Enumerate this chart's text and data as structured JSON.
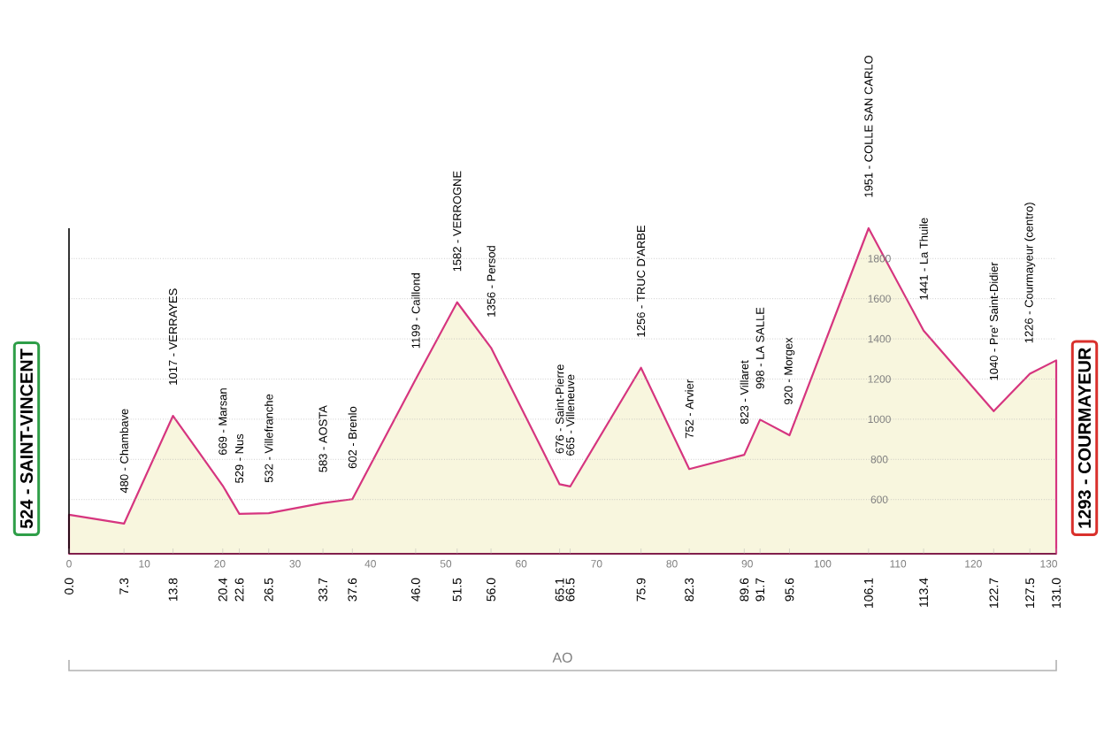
{
  "chart_data": {
    "type": "area",
    "xlim": [
      0,
      131
    ],
    "ylim": [
      330,
      1951
    ],
    "xticks": [
      0,
      10,
      20,
      30,
      40,
      50,
      60,
      70,
      80,
      90,
      100,
      110,
      120,
      130
    ],
    "x2lim": [
      0,
      131
    ],
    "x2ticks": [
      {
        "value": 0,
        "label": "0.0"
      },
      7.3,
      13.8,
      20.4,
      22.6,
      26.5,
      33.7,
      37.6,
      {
        "value": 46,
        "label": "46.0"
      },
      51.5,
      {
        "value": 56,
        "label": "56.0"
      },
      65.1,
      66.5,
      75.9,
      82.3,
      89.6,
      91.7,
      95.6,
      106.1,
      113.4,
      122.7,
      127.5,
      {
        "value": 131,
        "label": "131.0"
      }
    ],
    "yticks": [
      600,
      800,
      1000,
      1200,
      1400,
      1600,
      1800
    ],
    "grid": "y",
    "series": [
      {
        "color": "#d6357f",
        "x": [
          0,
          7.3,
          13.8,
          20.4,
          22.6,
          26.5,
          33.7,
          37.6,
          46.0,
          51.5,
          56.0,
          65.1,
          66.5,
          75.9,
          82.3,
          89.6,
          91.7,
          95.6,
          106.1,
          113.4,
          122.7,
          127.5,
          131.0
        ],
        "values": [
          524,
          480,
          1017,
          669,
          529,
          532,
          583,
          602,
          1199,
          1582,
          1356,
          676,
          665,
          1256,
          752,
          823,
          998,
          920,
          1951,
          1441,
          1040,
          1226,
          1293
        ]
      }
    ],
    "annotations": [
      {
        "text": "524 - SAINT-VINCENT",
        "x": 0,
        "y": 524
      },
      {
        "text": "480 - Chambave",
        "x": 7.3,
        "y": 480
      },
      {
        "text": "1017 - VERRAYES",
        "x": 13.8,
        "y": 1017
      },
      {
        "text": "669 - Marsan",
        "x": 20.4,
        "y": 669
      },
      {
        "text": "529 - Nus",
        "x": 22.6,
        "y": 529
      },
      {
        "text": "532 - Villefranche",
        "x": 26.5,
        "y": 532
      },
      {
        "text": "583 - AOSTA",
        "x": 33.7,
        "y": 583
      },
      {
        "text": "602 - Brenlo",
        "x": 37.6,
        "y": 602
      },
      {
        "text": "1199 - Caillond",
        "x": 46.0,
        "y": 1199
      },
      {
        "text": "1582 - VERROGNE",
        "x": 51.5,
        "y": 1582
      },
      {
        "text": "1356 - Persod",
        "x": 56.0,
        "y": 1356
      },
      {
        "text": "676 - Saint-Pierre",
        "x": 65.1,
        "y": 676
      },
      {
        "text": "665 - Villeneuve",
        "x": 66.5,
        "y": 665
      },
      {
        "text": "1256 - TRUC D'ARBE",
        "x": 75.9,
        "y": 1256
      },
      {
        "text": "752 - Arvier",
        "x": 82.3,
        "y": 752
      },
      {
        "text": "823 - Villaret",
        "x": 89.6,
        "y": 823
      },
      {
        "text": "998 - LA SALLE",
        "x": 91.7,
        "y": 998
      },
      {
        "text": "920 - Morgex",
        "x": 95.6,
        "y": 920
      },
      {
        "text": "1951 - COLLE SAN CARLO",
        "x": 106.1,
        "y": 1951
      },
      {
        "text": "1441 - La Thuile",
        "x": 113.4,
        "y": 1441
      },
      {
        "text": "1040 - Pre' Saint-Didier",
        "x": 122.7,
        "y": 1040
      },
      {
        "text": "1226 - Courmayeur (centro)",
        "x": 127.5,
        "y": 1226
      },
      {
        "text": "1293 - COURMAYEUR",
        "x": 131.0,
        "y": 1293
      },
      "AO"
    ]
  }
}
